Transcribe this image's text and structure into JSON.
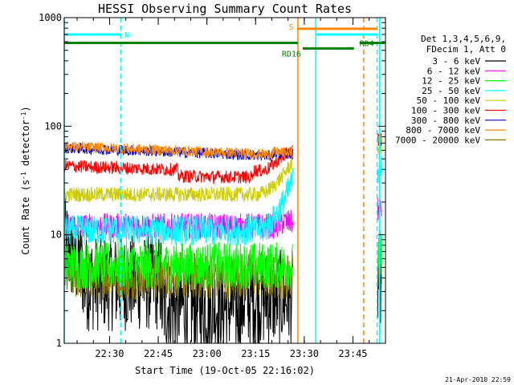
{
  "chart_data": {
    "type": "line",
    "title": "HESSI Observing Summary Count Rates",
    "xlabel": "Start Time (19-Oct-05 22:16:02)",
    "ylabel_main": "Count Rate (s",
    "ylabel_sup1": "-1",
    "ylabel_mid": " detector",
    "ylabel_sup2": "-1",
    "ylabel_end": ")",
    "ylog": true,
    "ylim": [
      1,
      1000
    ],
    "xlim_minutes": [
      0,
      99
    ],
    "x_tick_labels": [
      "22:30",
      "22:45",
      "23:00",
      "23:15",
      "23:30",
      "23:45"
    ],
    "x_tick_minutes": [
      13.97,
      28.97,
      43.97,
      58.97,
      73.97,
      88.97
    ],
    "y_tick_labels": [
      "1",
      "10",
      "100",
      "1000"
    ],
    "y_tick_values": [
      1,
      10,
      100,
      1000
    ],
    "legend_header": [
      "Det 1,3,4,5,6,9,",
      "FDecim 1, Att 0"
    ],
    "legend_placement": "right",
    "series": [
      {
        "name": "3 - 6 keV",
        "color": "#000000"
      },
      {
        "name": "6 - 12 keV",
        "color": "#ff00ff"
      },
      {
        "name": "12 - 25 keV",
        "color": "#00ff00"
      },
      {
        "name": "25 - 50 keV",
        "color": "#00ffff"
      },
      {
        "name": "50 - 100 keV",
        "color": "#cccc00"
      },
      {
        "name": "100 - 300 keV",
        "color": "#ff0000"
      },
      {
        "name": "300 - 800 keV",
        "color": "#0000cc"
      },
      {
        "name": "800 - 7000 keV",
        "color": "#ff8800"
      },
      {
        "name": "7000 - 20000 keV",
        "color": "#8b7500"
      }
    ],
    "flag_bars": [
      {
        "label": "N",
        "color": "#00ffff",
        "start": 0,
        "end": 17.4,
        "y": 700
      },
      {
        "label": "",
        "color": "#00ffff",
        "start": 77.5,
        "end": 96.5,
        "y": 700
      },
      {
        "label": "S",
        "color": "#ff8800",
        "start": 71.7,
        "end": 96.5,
        "y": 790
      },
      {
        "label": "",
        "color": "#007f00",
        "start": 0,
        "end": 72,
        "y": 585
      },
      {
        "label": "RD16",
        "color": "#007f00",
        "start": 73.5,
        "end": 89.3,
        "y": 520
      },
      {
        "label": "RD4",
        "color": "#007f00",
        "start": 91,
        "end": 99,
        "y": 585
      }
    ],
    "vertical_markers": [
      {
        "minute": 0,
        "color": "#00ffff",
        "style": "solid"
      },
      {
        "minute": 17.4,
        "color": "#00ffff",
        "style": "dashed"
      },
      {
        "minute": 72,
        "color": "#ff8800",
        "style": "solid"
      },
      {
        "minute": 77.5,
        "color": "#00ffff",
        "style": "solid"
      },
      {
        "minute": 92.3,
        "color": "#ff8800",
        "style": "dashed"
      },
      {
        "minute": 96.4,
        "color": "#00ffff",
        "style": "dashed"
      },
      {
        "minute": 97.2,
        "color": "#00ffff",
        "style": "solid"
      }
    ],
    "data_gaps_minutes": [
      [
        70.5,
        94.5
      ]
    ],
    "stamp": "21-Apr-2010 22:59"
  }
}
